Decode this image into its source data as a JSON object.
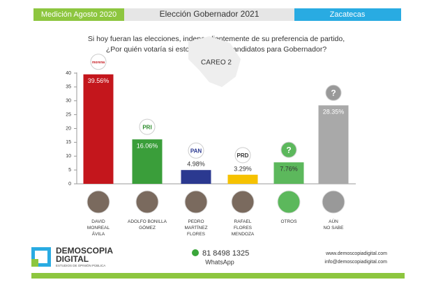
{
  "header": {
    "left": "Medición Agosto 2020",
    "center": "Elección Gobernador 2021",
    "right": "Zacatecas"
  },
  "chart_data": {
    "type": "bar",
    "subtitle": [
      "Si hoy fueran las elecciones, independientemente de su preferencia de partido,",
      "¿Por quién votaría si estos fueran los candidatos para Gobernador?"
    ],
    "title": "CAREO 2",
    "categories": [
      "DAVID\nMONREAL\nÁVILA",
      "ADOLFO BONILLA\nGÓMEZ",
      "PEDRO\nMARTÍNEZ\nFLORES",
      "RAFAEL\nFLORES\nMENDOZA",
      "OTROS",
      "AÚN\nNO SABE"
    ],
    "logos": [
      "morena",
      "PRI",
      "PAN",
      "PRD",
      "?",
      "?"
    ],
    "values": [
      39.56,
      16.06,
      4.98,
      3.29,
      7.76,
      28.35
    ],
    "value_labels": [
      "39.56%",
      "16.06%",
      "4.98%",
      "3.29%",
      "7.76%",
      "28.35%"
    ],
    "colors": [
      "#c4161c",
      "#3a9e3a",
      "#2b3990",
      "#f6c200",
      "#5cb85c",
      "#a9a9a9"
    ],
    "ylim": [
      0,
      40
    ],
    "yticks": [
      0,
      5,
      10,
      15,
      20,
      25,
      30,
      35,
      40
    ]
  },
  "footer": {
    "brand": "DEMOSCOPIA",
    "brand2": "DIGITAL",
    "tagline": "ESTUDIOS DE OPINIÓN PÚBLICA",
    "phone": "81 8498 1325",
    "whatsapp": "WhatsApp",
    "web": "www.demoscopiadigital.com",
    "email": "info@demoscopiadigital.com"
  }
}
